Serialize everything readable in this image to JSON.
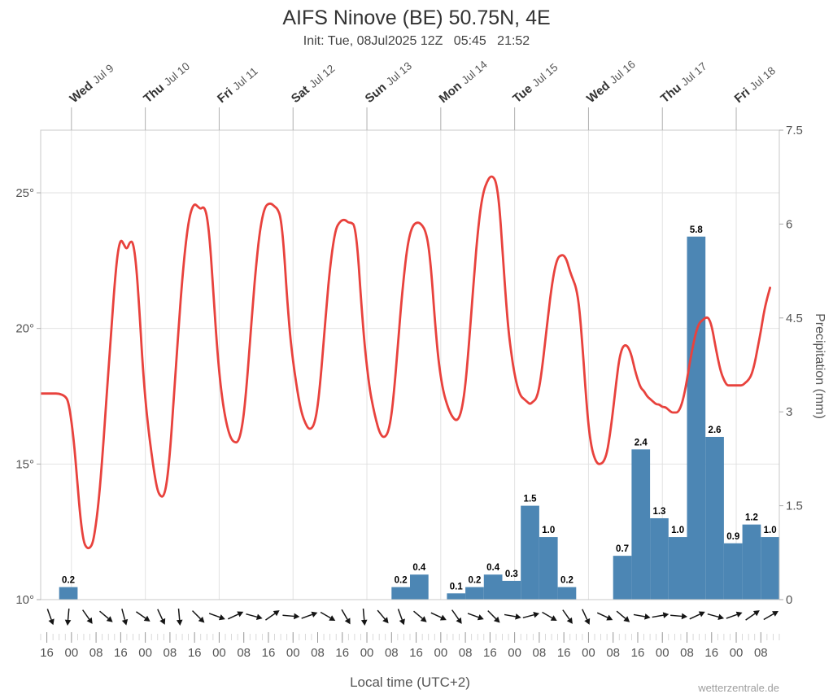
{
  "header": {
    "title": "AIFS Ninove (BE) 50.75N, 4E",
    "subtitle": "Init: Tue, 08Jul2025 12Z   05:45   21:52"
  },
  "watermark": "wetterzentrale.de",
  "axes": {
    "x_label": "Local time (UTC+2)",
    "y_right_label": "Precipitation (mm)",
    "temp_ticks": [
      "10°",
      "15°",
      "20°",
      "25°"
    ],
    "temp_tick_values": [
      10,
      15,
      20,
      25
    ],
    "precip_ticks": [
      "0",
      "1.5",
      "3",
      "4.5",
      "6",
      "7.5"
    ],
    "precip_tick_values": [
      0,
      1.5,
      3,
      4.5,
      6,
      7.5
    ],
    "x_ticks": [
      {
        "t": 2,
        "label": "16"
      },
      {
        "t": 10,
        "label": "00"
      },
      {
        "t": 18,
        "label": "08"
      },
      {
        "t": 26,
        "label": "16"
      },
      {
        "t": 34,
        "label": "00"
      },
      {
        "t": 42,
        "label": "08"
      },
      {
        "t": 50,
        "label": "16"
      },
      {
        "t": 58,
        "label": "00"
      },
      {
        "t": 66,
        "label": "08"
      },
      {
        "t": 74,
        "label": "16"
      },
      {
        "t": 82,
        "label": "00"
      },
      {
        "t": 90,
        "label": "08"
      },
      {
        "t": 98,
        "label": "16"
      },
      {
        "t": 106,
        "label": "00"
      },
      {
        "t": 114,
        "label": "08"
      },
      {
        "t": 122,
        "label": "16"
      },
      {
        "t": 130,
        "label": "00"
      },
      {
        "t": 138,
        "label": "08"
      },
      {
        "t": 146,
        "label": "16"
      },
      {
        "t": 154,
        "label": "00"
      },
      {
        "t": 162,
        "label": "08"
      },
      {
        "t": 170,
        "label": "16"
      },
      {
        "t": 178,
        "label": "00"
      },
      {
        "t": 186,
        "label": "08"
      },
      {
        "t": 194,
        "label": "16"
      },
      {
        "t": 202,
        "label": "00"
      },
      {
        "t": 210,
        "label": "08"
      },
      {
        "t": 218,
        "label": "16"
      },
      {
        "t": 226,
        "label": "00"
      },
      {
        "t": 234,
        "label": "08"
      }
    ]
  },
  "colors": {
    "temp_line": "#e8423d",
    "precip_bar": "#4c86b4",
    "grid": "#e2e2e2",
    "axis": "#c9c9c9",
    "tick_text": "#555555",
    "day_text": "#333333",
    "day_date_text": "#555555",
    "bar_label": "#000000",
    "wind_arrow": "#151515"
  },
  "chart_data": {
    "type": "line+bar",
    "title": "AIFS Ninove (BE) 50.75N, 4E",
    "x_axis_note": "hours since Tue 08Jul2025 14:00 local (UTC+2)",
    "x_range_hours": [
      0,
      240
    ],
    "temp_axis": {
      "side": "left",
      "unit": "°C",
      "ticks": [
        10,
        15,
        20,
        25
      ]
    },
    "precip_axis": {
      "side": "right",
      "unit": "mm",
      "range": [
        0,
        7.5
      ],
      "ticks": [
        0,
        1.5,
        3,
        4.5,
        6,
        7.5
      ]
    },
    "days": [
      {
        "day": "Wed",
        "date": "Jul 9",
        "t": 10
      },
      {
        "day": "Thu",
        "date": "Jul 10",
        "t": 34
      },
      {
        "day": "Fri",
        "date": "Jul 11",
        "t": 58
      },
      {
        "day": "Sat",
        "date": "Jul 12",
        "t": 82
      },
      {
        "day": "Sun",
        "date": "Jul 13",
        "t": 106
      },
      {
        "day": "Mon",
        "date": "Jul 14",
        "t": 130
      },
      {
        "day": "Tue",
        "date": "Jul 15",
        "t": 154
      },
      {
        "day": "Wed",
        "date": "Jul 16",
        "t": 178
      },
      {
        "day": "Thu",
        "date": "Jul 17",
        "t": 202
      },
      {
        "day": "Fri",
        "date": "Jul 18",
        "t": 226
      }
    ],
    "temperature_series": {
      "name": "2m temperature (°C)",
      "color": "#e8423d",
      "points": [
        [
          0,
          17.6
        ],
        [
          2,
          17.6
        ],
        [
          4,
          17.6
        ],
        [
          6,
          17.6
        ],
        [
          8,
          17.5
        ],
        [
          9,
          17.3
        ],
        [
          10,
          16.6
        ],
        [
          11,
          15.6
        ],
        [
          12,
          14.2
        ],
        [
          13,
          12.9
        ],
        [
          14,
          12.1
        ],
        [
          15,
          11.9
        ],
        [
          16,
          11.9
        ],
        [
          17,
          12.1
        ],
        [
          18,
          12.8
        ],
        [
          19,
          13.8
        ],
        [
          20,
          15.2
        ],
        [
          21,
          16.8
        ],
        [
          22,
          18.4
        ],
        [
          23,
          20.0
        ],
        [
          24,
          21.6
        ],
        [
          25,
          22.8
        ],
        [
          26,
          23.3
        ],
        [
          27,
          23.1
        ],
        [
          28,
          22.9
        ],
        [
          29,
          23.2
        ],
        [
          30,
          23.2
        ],
        [
          31,
          22.4
        ],
        [
          32,
          20.8
        ],
        [
          33,
          18.9
        ],
        [
          34,
          17.4
        ],
        [
          35,
          16.3
        ],
        [
          36,
          15.4
        ],
        [
          37,
          14.6
        ],
        [
          38,
          14.0
        ],
        [
          39,
          13.8
        ],
        [
          40,
          13.8
        ],
        [
          41,
          14.3
        ],
        [
          42,
          15.4
        ],
        [
          43,
          17.0
        ],
        [
          44,
          18.7
        ],
        [
          45,
          20.3
        ],
        [
          46,
          21.8
        ],
        [
          47,
          23.0
        ],
        [
          48,
          23.9
        ],
        [
          49,
          24.4
        ],
        [
          50,
          24.6
        ],
        [
          51,
          24.5
        ],
        [
          52,
          24.4
        ],
        [
          53,
          24.5
        ],
        [
          54,
          24.2
        ],
        [
          55,
          23.2
        ],
        [
          56,
          21.5
        ],
        [
          57,
          19.8
        ],
        [
          58,
          18.4
        ],
        [
          59,
          17.4
        ],
        [
          60,
          16.7
        ],
        [
          61,
          16.2
        ],
        [
          62,
          15.9
        ],
        [
          63,
          15.8
        ],
        [
          64,
          15.8
        ],
        [
          65,
          16.1
        ],
        [
          66,
          16.8
        ],
        [
          67,
          18.0
        ],
        [
          68,
          19.5
        ],
        [
          69,
          21.0
        ],
        [
          70,
          22.3
        ],
        [
          71,
          23.4
        ],
        [
          72,
          24.1
        ],
        [
          73,
          24.5
        ],
        [
          74,
          24.6
        ],
        [
          75,
          24.6
        ],
        [
          76,
          24.5
        ],
        [
          77,
          24.4
        ],
        [
          78,
          24.1
        ],
        [
          79,
          23.0
        ],
        [
          80,
          21.2
        ],
        [
          81,
          19.8
        ],
        [
          82,
          18.8
        ],
        [
          83,
          18.0
        ],
        [
          84,
          17.3
        ],
        [
          85,
          16.8
        ],
        [
          86,
          16.5
        ],
        [
          87,
          16.3
        ],
        [
          88,
          16.3
        ],
        [
          89,
          16.5
        ],
        [
          90,
          17.1
        ],
        [
          91,
          18.2
        ],
        [
          92,
          19.6
        ],
        [
          93,
          21.0
        ],
        [
          94,
          22.2
        ],
        [
          95,
          23.1
        ],
        [
          96,
          23.7
        ],
        [
          97,
          23.9
        ],
        [
          98,
          24.0
        ],
        [
          99,
          24.0
        ],
        [
          100,
          23.9
        ],
        [
          101,
          23.9
        ],
        [
          102,
          23.8
        ],
        [
          103,
          22.9
        ],
        [
          104,
          21.2
        ],
        [
          105,
          19.7
        ],
        [
          106,
          18.6
        ],
        [
          107,
          17.7
        ],
        [
          108,
          17.1
        ],
        [
          109,
          16.6
        ],
        [
          110,
          16.2
        ],
        [
          111,
          16.0
        ],
        [
          112,
          16.0
        ],
        [
          113,
          16.2
        ],
        [
          114,
          16.8
        ],
        [
          115,
          17.9
        ],
        [
          116,
          19.3
        ],
        [
          117,
          20.7
        ],
        [
          118,
          21.9
        ],
        [
          119,
          22.9
        ],
        [
          120,
          23.5
        ],
        [
          121,
          23.8
        ],
        [
          122,
          23.9
        ],
        [
          123,
          23.9
        ],
        [
          124,
          23.8
        ],
        [
          125,
          23.6
        ],
        [
          126,
          23.1
        ],
        [
          127,
          22.0
        ],
        [
          128,
          20.4
        ],
        [
          129,
          19.1
        ],
        [
          130,
          18.2
        ],
        [
          131,
          17.6
        ],
        [
          132,
          17.2
        ],
        [
          133,
          16.9
        ],
        [
          134,
          16.7
        ],
        [
          135,
          16.6
        ],
        [
          136,
          16.7
        ],
        [
          137,
          17.1
        ],
        [
          138,
          17.9
        ],
        [
          139,
          19.2
        ],
        [
          140,
          20.7
        ],
        [
          141,
          22.2
        ],
        [
          142,
          23.5
        ],
        [
          143,
          24.5
        ],
        [
          144,
          25.1
        ],
        [
          145,
          25.4
        ],
        [
          146,
          25.6
        ],
        [
          147,
          25.6
        ],
        [
          148,
          25.4
        ],
        [
          149,
          24.6
        ],
        [
          150,
          23.0
        ],
        [
          151,
          21.3
        ],
        [
          152,
          19.9
        ],
        [
          153,
          19.0
        ],
        [
          154,
          18.3
        ],
        [
          155,
          17.8
        ],
        [
          156,
          17.5
        ],
        [
          157,
          17.4
        ],
        [
          158,
          17.3
        ],
        [
          159,
          17.2
        ],
        [
          160,
          17.3
        ],
        [
          161,
          17.4
        ],
        [
          162,
          17.8
        ],
        [
          163,
          18.6
        ],
        [
          164,
          19.6
        ],
        [
          165,
          20.6
        ],
        [
          166,
          21.5
        ],
        [
          167,
          22.2
        ],
        [
          168,
          22.6
        ],
        [
          169,
          22.7
        ],
        [
          170,
          22.7
        ],
        [
          171,
          22.5
        ],
        [
          172,
          22.1
        ],
        [
          173,
          21.8
        ],
        [
          174,
          21.5
        ],
        [
          175,
          20.8
        ],
        [
          176,
          19.4
        ],
        [
          177,
          17.8
        ],
        [
          178,
          16.4
        ],
        [
          179,
          15.6
        ],
        [
          180,
          15.2
        ],
        [
          181,
          15.0
        ],
        [
          182,
          15.0
        ],
        [
          183,
          15.1
        ],
        [
          184,
          15.4
        ],
        [
          185,
          16.1
        ],
        [
          186,
          17.0
        ],
        [
          187,
          18.0
        ],
        [
          188,
          18.9
        ],
        [
          189,
          19.3
        ],
        [
          190,
          19.4
        ],
        [
          191,
          19.3
        ],
        [
          192,
          19.0
        ],
        [
          193,
          18.5
        ],
        [
          194,
          18.1
        ],
        [
          195,
          17.8
        ],
        [
          196,
          17.7
        ],
        [
          197,
          17.5
        ],
        [
          198,
          17.4
        ],
        [
          199,
          17.3
        ],
        [
          200,
          17.2
        ],
        [
          201,
          17.2
        ],
        [
          202,
          17.1
        ],
        [
          203,
          17.1
        ],
        [
          204,
          17.0
        ],
        [
          205,
          16.9
        ],
        [
          206,
          16.9
        ],
        [
          207,
          16.9
        ],
        [
          208,
          17.1
        ],
        [
          209,
          17.5
        ],
        [
          210,
          18.1
        ],
        [
          211,
          18.8
        ],
        [
          212,
          19.4
        ],
        [
          213,
          19.9
        ],
        [
          214,
          20.2
        ],
        [
          215,
          20.3
        ],
        [
          216,
          20.4
        ],
        [
          217,
          20.4
        ],
        [
          218,
          20.1
        ],
        [
          219,
          19.5
        ],
        [
          220,
          18.9
        ],
        [
          221,
          18.4
        ],
        [
          222,
          18.1
        ],
        [
          223,
          17.9
        ],
        [
          224,
          17.9
        ],
        [
          225,
          17.9
        ],
        [
          226,
          17.9
        ],
        [
          227,
          17.9
        ],
        [
          228,
          17.9
        ],
        [
          229,
          18.0
        ],
        [
          230,
          18.1
        ],
        [
          231,
          18.3
        ],
        [
          232,
          18.7
        ],
        [
          233,
          19.3
        ],
        [
          234,
          19.9
        ],
        [
          235,
          20.6
        ],
        [
          236,
          21.1
        ],
        [
          237,
          21.5
        ]
      ]
    },
    "precipitation_series": {
      "name": "6h precipitation (mm)",
      "color": "#4c86b4",
      "bar_width_hours": 6,
      "bars": [
        {
          "t": 6,
          "value": 0.2
        },
        {
          "t": 114,
          "value": 0.2
        },
        {
          "t": 120,
          "value": 0.4
        },
        {
          "t": 132,
          "value": 0.1
        },
        {
          "t": 138,
          "value": 0.2
        },
        {
          "t": 144,
          "value": 0.4
        },
        {
          "t": 150,
          "value": 0.3
        },
        {
          "t": 156,
          "value": 1.5
        },
        {
          "t": 162,
          "value": 1.0
        },
        {
          "t": 168,
          "value": 0.2
        },
        {
          "t": 186,
          "value": 0.7
        },
        {
          "t": 192,
          "value": 2.4
        },
        {
          "t": 198,
          "value": 1.3
        },
        {
          "t": 204,
          "value": 1.0
        },
        {
          "t": 210,
          "value": 5.8
        },
        {
          "t": 216,
          "value": 2.6
        },
        {
          "t": 222,
          "value": 0.9
        },
        {
          "t": 228,
          "value": 1.2
        },
        {
          "t": 234,
          "value": 1.0
        }
      ]
    },
    "wind_arrows": [
      {
        "t": 3,
        "dir": 70
      },
      {
        "t": 9,
        "dir": 95
      },
      {
        "t": 15,
        "dir": 55
      },
      {
        "t": 21,
        "dir": 40
      },
      {
        "t": 27,
        "dir": 75
      },
      {
        "t": 33,
        "dir": 35
      },
      {
        "t": 39,
        "dir": 65
      },
      {
        "t": 45,
        "dir": 85
      },
      {
        "t": 51,
        "dir": 45
      },
      {
        "t": 57,
        "dir": 20
      },
      {
        "t": 63,
        "dir": -25
      },
      {
        "t": 69,
        "dir": 15
      },
      {
        "t": 75,
        "dir": -35
      },
      {
        "t": 81,
        "dir": 5
      },
      {
        "t": 87,
        "dir": -20
      },
      {
        "t": 93,
        "dir": 30
      },
      {
        "t": 99,
        "dir": 60
      },
      {
        "t": 105,
        "dir": 85
      },
      {
        "t": 111,
        "dir": 50
      },
      {
        "t": 117,
        "dir": 70
      },
      {
        "t": 123,
        "dir": 40
      },
      {
        "t": 129,
        "dir": 25
      },
      {
        "t": 135,
        "dir": 55
      },
      {
        "t": 141,
        "dir": 20
      },
      {
        "t": 147,
        "dir": 45
      },
      {
        "t": 153,
        "dir": 10
      },
      {
        "t": 159,
        "dir": -15
      },
      {
        "t": 165,
        "dir": 30
      },
      {
        "t": 171,
        "dir": 55
      },
      {
        "t": 177,
        "dir": 65
      },
      {
        "t": 183,
        "dir": 25
      },
      {
        "t": 189,
        "dir": 40
      },
      {
        "t": 195,
        "dir": 10
      },
      {
        "t": 201,
        "dir": -10
      },
      {
        "t": 207,
        "dir": 5
      },
      {
        "t": 213,
        "dir": -25
      },
      {
        "t": 219,
        "dir": 15
      },
      {
        "t": 225,
        "dir": -20
      },
      {
        "t": 231,
        "dir": -35
      },
      {
        "t": 237,
        "dir": -30
      }
    ]
  }
}
